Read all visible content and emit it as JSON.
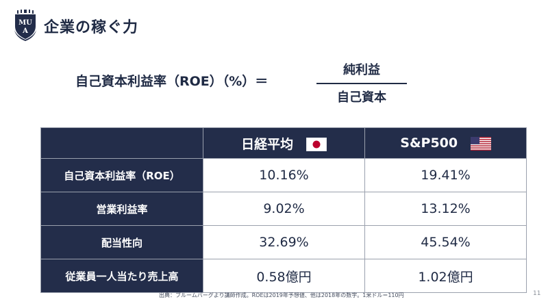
{
  "slide": {
    "title": "企業の稼ぐ力",
    "logo_text_top": "MU",
    "logo_text_bottom": "A",
    "page_number": "11"
  },
  "formula": {
    "left": "自己資本利益率（ROE）（%）＝",
    "numerator": "純利益",
    "denominator": "自己資本"
  },
  "table": {
    "columns": [
      {
        "label": "日経平均",
        "flag": "japan-flag-icon"
      },
      {
        "label": "S&P500",
        "flag": "usa-flag-icon"
      }
    ],
    "rows": [
      {
        "label": "自己資本利益率（ROE）",
        "values": [
          "10.16%",
          "19.41%"
        ]
      },
      {
        "label": "営業利益率",
        "values": [
          "9.02%",
          "13.12%"
        ]
      },
      {
        "label": "配当性向",
        "values": [
          "32.69%",
          "45.54%"
        ]
      },
      {
        "label": "従業員一人当たり売上高",
        "values": [
          "0.58億円",
          "1.02億円"
        ]
      }
    ]
  },
  "footnote": "出典：ブルームバーグより講師作成。ROEは2019年予想値、他は2018年の数字。1米ドル＝110円",
  "colors": {
    "navy": "#232d4a",
    "text": "#1f2a44",
    "grid": "#9aa0ad",
    "japan_red": "#bc002d"
  }
}
